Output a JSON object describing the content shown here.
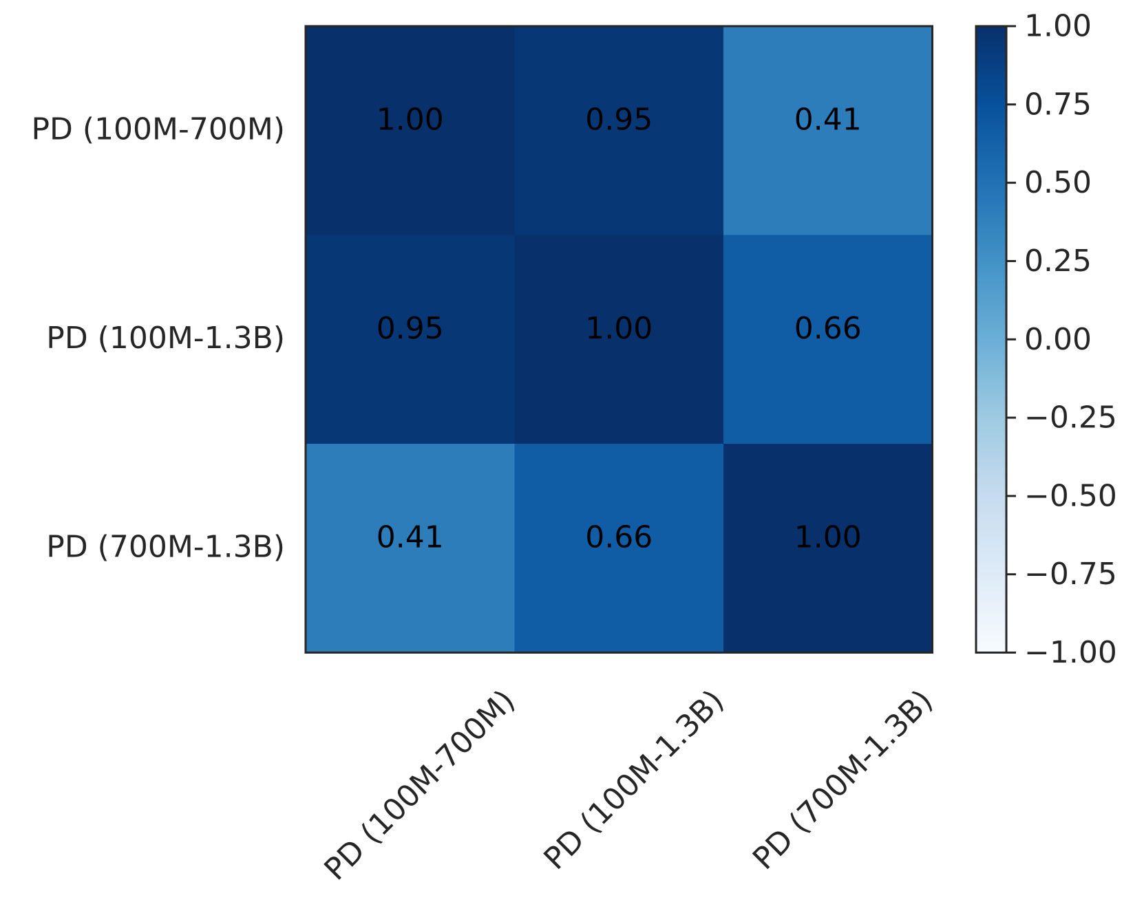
{
  "chart_data": {
    "type": "heatmap",
    "title": "",
    "xlabel": "",
    "ylabel": "",
    "row_labels": [
      "PD (100M-700M)",
      "PD (100M-1.3B)",
      "PD (700M-1.3B)"
    ],
    "col_labels": [
      "PD (100M-700M)",
      "PD (100M-1.3B)",
      "PD (700M-1.3B)"
    ],
    "values": [
      [
        1.0,
        0.95,
        0.41
      ],
      [
        0.95,
        1.0,
        0.66
      ],
      [
        0.41,
        0.66,
        1.0
      ]
    ],
    "value_labels": [
      [
        "1.00",
        "0.95",
        "0.41"
      ],
      [
        "0.95",
        "1.00",
        "0.66"
      ],
      [
        "0.41",
        "0.66",
        "1.00"
      ]
    ],
    "colormap": "Blues",
    "vmin": -1.0,
    "vmax": 1.0,
    "colorbar_ticks": [
      1.0,
      0.75,
      0.5,
      0.25,
      0.0,
      -0.25,
      -0.5,
      -0.75,
      -1.0
    ],
    "colorbar_tick_labels": [
      "1.00",
      "0.75",
      "0.50",
      "0.25",
      "0.00",
      "−0.25",
      "−0.50",
      "−0.75",
      "−1.00"
    ]
  },
  "colors": {
    "colormap_stops": [
      "#f7fbff",
      "#deebf7",
      "#c6dbef",
      "#9ecae1",
      "#6baed6",
      "#4292c6",
      "#2171b5",
      "#08519c",
      "#08306b"
    ],
    "axis": "#262626"
  }
}
